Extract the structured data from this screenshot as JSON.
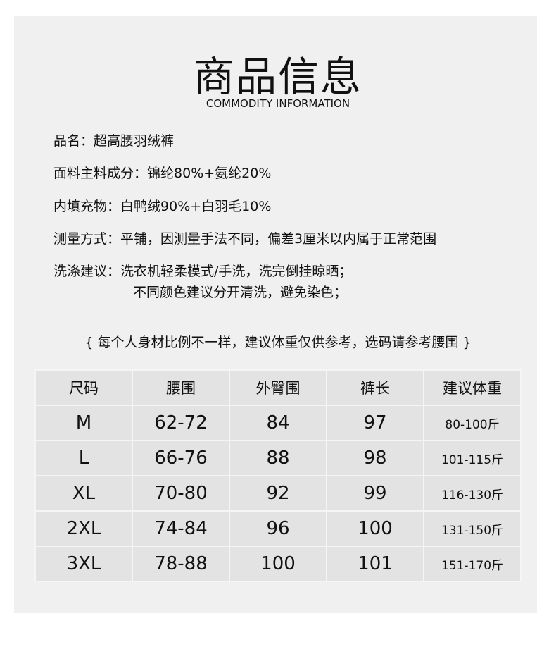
{
  "title": "商品信息",
  "subtitle": "COMMODITY INFORMATION",
  "info": [
    {
      "label": "品名：",
      "value": "超高腰羽绒裤"
    },
    {
      "label": "面料主料成分：",
      "value": "锦纶80%+氨纶20%"
    },
    {
      "label": "内填充物：",
      "value": "白鸭绒90%+白羽毛10%"
    },
    {
      "label": "测量方式：",
      "value": "平铺，因测量手法不同，偏差3厘米以内属于正常范围"
    },
    {
      "label": "洗涤建议：",
      "value": "洗衣机轻柔模式/手洗，洗完倒挂晾晒；",
      "value2": "不同颜色建议分开清洗，避免染色；"
    }
  ],
  "note": "{ 每个人身材比例不一样，建议体重仅供参考，选码请参考腰围 }",
  "table": {
    "headers": [
      "尺码",
      "腰围",
      "外臀围",
      "裤长",
      "建议体重"
    ],
    "rows": [
      [
        "M",
        "62-72",
        "84",
        "97",
        "80-100斤"
      ],
      [
        "L",
        "66-76",
        "88",
        "98",
        "101-115斤"
      ],
      [
        "XL",
        "70-80",
        "92",
        "99",
        "116-130斤"
      ],
      [
        "2XL",
        "74-84",
        "96",
        "100",
        "131-150斤"
      ],
      [
        "3XL",
        "78-88",
        "100",
        "101",
        "151-170斤"
      ]
    ]
  }
}
